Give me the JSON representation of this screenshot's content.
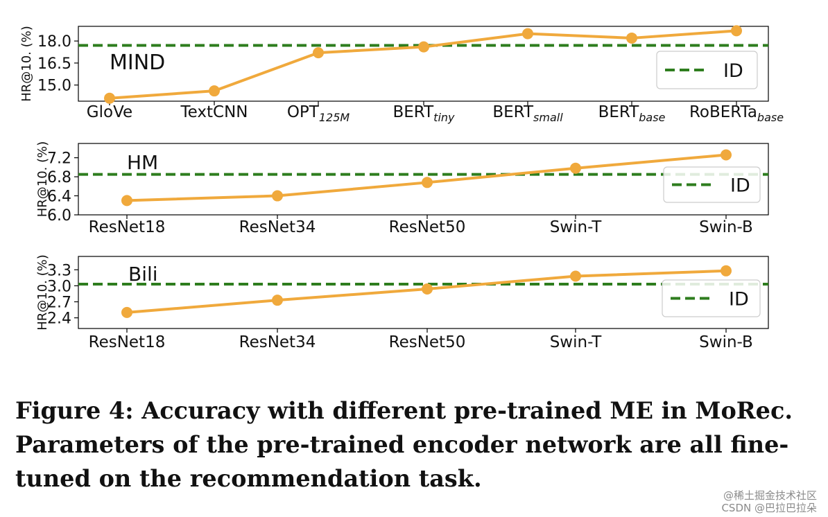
{
  "colors": {
    "series": "#f0a93c",
    "reference": "#2e7d1e",
    "axis": "#000000"
  },
  "chart_data": [
    {
      "type": "line",
      "panel_label": "MIND",
      "ylabel": "HR@10. (%)",
      "categories": [
        {
          "base": "GloVe",
          "sub": ""
        },
        {
          "base": "TextCNN",
          "sub": ""
        },
        {
          "base": "OPT",
          "sub": "125M"
        },
        {
          "base": "BERT",
          "sub": "tiny"
        },
        {
          "base": "BERT",
          "sub": "small"
        },
        {
          "base": "BERT",
          "sub": "base"
        },
        {
          "base": "RoBERTa",
          "sub": "base"
        }
      ],
      "values": [
        14.1,
        14.6,
        17.2,
        17.6,
        18.5,
        18.2,
        18.7
      ],
      "reference_value": 17.7,
      "legend": "ID",
      "legend_position": "lower-right",
      "ylim": [
        13.9,
        19.0
      ],
      "yticks": [
        15.0,
        16.5,
        18.0
      ],
      "ytick_labels": [
        "15.0",
        "16.5",
        "18.0"
      ]
    },
    {
      "type": "line",
      "panel_label": "HM",
      "ylabel": "HR@10. (%)",
      "categories": [
        {
          "base": "ResNet18",
          "sub": ""
        },
        {
          "base": "ResNet34",
          "sub": ""
        },
        {
          "base": "ResNet50",
          "sub": ""
        },
        {
          "base": "Swin-T",
          "sub": ""
        },
        {
          "base": "Swin-B",
          "sub": ""
        }
      ],
      "values": [
        6.3,
        6.4,
        6.68,
        6.98,
        7.26
      ],
      "reference_value": 6.85,
      "legend": "ID",
      "legend_position": "center-right",
      "ylim": [
        6.0,
        7.5
      ],
      "yticks": [
        6.0,
        6.4,
        6.8,
        7.2
      ],
      "ytick_labels": [
        "6.0",
        "6.4",
        "6.8",
        "7.2"
      ]
    },
    {
      "type": "line",
      "panel_label": "Bili",
      "ylabel": "HR@10. (%)",
      "categories": [
        {
          "base": "ResNet18",
          "sub": ""
        },
        {
          "base": "ResNet34",
          "sub": ""
        },
        {
          "base": "ResNet50",
          "sub": ""
        },
        {
          "base": "Swin-T",
          "sub": ""
        },
        {
          "base": "Swin-B",
          "sub": ""
        }
      ],
      "values": [
        2.5,
        2.73,
        2.94,
        3.18,
        3.28
      ],
      "reference_value": 3.03,
      "legend": "ID",
      "legend_position": "lower-right",
      "ylim": [
        2.2,
        3.55
      ],
      "yticks": [
        2.4,
        2.7,
        3.0,
        3.3
      ],
      "ytick_labels": [
        "2.4",
        "2.7",
        "3.0",
        "3.3"
      ]
    }
  ],
  "caption": {
    "line1": "Figure 4: Accuracy with different pre-trained ME in MoRec.",
    "line2": "Parameters of the pre-trained encoder network are all fine-",
    "line3": "tuned on the recommendation task."
  },
  "watermark": {
    "line1": "@稀土掘金技术社区",
    "line2": "CSDN @巴拉巴拉朵"
  }
}
